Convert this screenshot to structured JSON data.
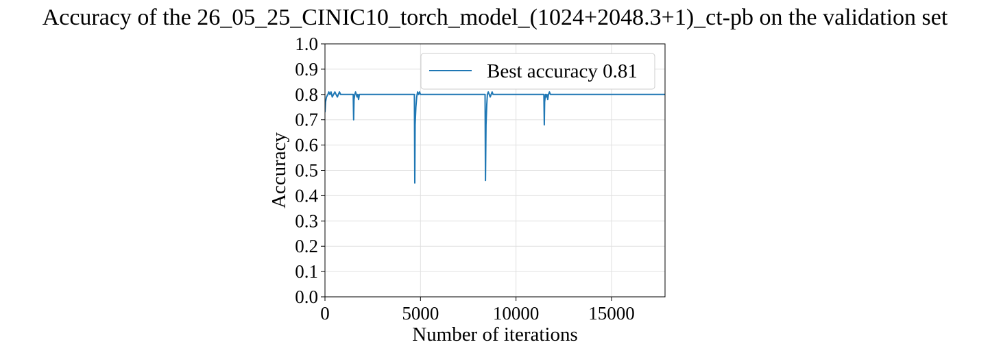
{
  "chart_data": {
    "type": "line",
    "title": "Accuracy of the 26_05_25_CINIC10_torch_model_(1024+2048.3+1)_ct-pb on the validation set",
    "xlabel": "Number of iterations",
    "ylabel": "Accuracy",
    "xlim": [
      0,
      17800
    ],
    "ylim": [
      0.0,
      1.0
    ],
    "xticks": [
      0,
      5000,
      10000,
      15000
    ],
    "xtick_labels": [
      "0",
      "5000",
      "10000",
      "15000"
    ],
    "yticks": [
      0.0,
      0.1,
      0.2,
      0.3,
      0.4,
      0.5,
      0.6,
      0.7,
      0.8,
      0.9,
      1.0
    ],
    "ytick_labels": [
      "0.0",
      "0.1",
      "0.2",
      "0.3",
      "0.4",
      "0.5",
      "0.6",
      "0.7",
      "0.8",
      "0.9",
      "1.0"
    ],
    "grid": true,
    "legend_position": "top-right",
    "colors": {
      "line": "#1f77b4"
    },
    "series": [
      {
        "name": "Best accuracy 0.81",
        "x": [
          0,
          30,
          80,
          150,
          200,
          260,
          320,
          380,
          450,
          520,
          580,
          650,
          700,
          760,
          820,
          900,
          1000,
          1100,
          1200,
          1300,
          1400,
          1480,
          1500,
          1520,
          1560,
          1600,
          1640,
          1680,
          1720,
          1760,
          1800,
          1900,
          2200,
          2600,
          3000,
          3400,
          3800,
          4200,
          4600,
          4680,
          4700,
          4720,
          4760,
          4800,
          4850,
          4900,
          4950,
          5000,
          5100,
          5300,
          5600,
          6000,
          6500,
          7000,
          7500,
          8000,
          8350,
          8380,
          8400,
          8430,
          8470,
          8500,
          8550,
          8600,
          8650,
          8700,
          8750,
          8800,
          8900,
          9200,
          9600,
          10000,
          10500,
          11000,
          11400,
          11460,
          11480,
          11500,
          11540,
          11580,
          11620,
          11660,
          11700,
          11750,
          11800,
          11900,
          12200,
          12600,
          13000,
          14000,
          15000,
          16000,
          17000,
          17800
        ],
        "values": [
          0.73,
          0.77,
          0.79,
          0.8,
          0.81,
          0.8,
          0.81,
          0.79,
          0.8,
          0.81,
          0.8,
          0.79,
          0.8,
          0.81,
          0.8,
          0.8,
          0.8,
          0.8,
          0.8,
          0.8,
          0.8,
          0.8,
          0.7,
          0.78,
          0.8,
          0.81,
          0.8,
          0.79,
          0.8,
          0.78,
          0.8,
          0.8,
          0.8,
          0.8,
          0.8,
          0.8,
          0.8,
          0.8,
          0.8,
          0.8,
          0.45,
          0.68,
          0.75,
          0.79,
          0.81,
          0.8,
          0.81,
          0.8,
          0.8,
          0.8,
          0.8,
          0.8,
          0.8,
          0.8,
          0.8,
          0.8,
          0.8,
          0.8,
          0.46,
          0.68,
          0.76,
          0.8,
          0.81,
          0.8,
          0.79,
          0.8,
          0.81,
          0.8,
          0.8,
          0.8,
          0.8,
          0.8,
          0.8,
          0.8,
          0.8,
          0.8,
          0.68,
          0.77,
          0.8,
          0.79,
          0.8,
          0.78,
          0.8,
          0.81,
          0.8,
          0.8,
          0.8,
          0.8,
          0.8,
          0.8,
          0.8,
          0.8,
          0.8,
          0.8
        ]
      }
    ]
  }
}
